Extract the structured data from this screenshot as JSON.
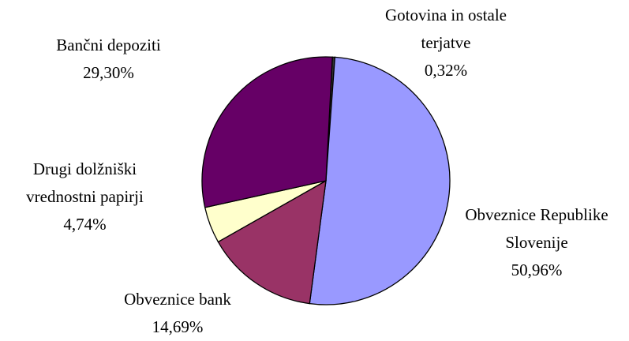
{
  "chart_data": {
    "type": "pie",
    "categories": [
      "Gotovina in ostale terjatve",
      "Obveznice Republike Slovenije",
      "Obveznice bank",
      "Drugi dolžniški vrednostni papirji",
      "Bančni depoziti"
    ],
    "values": [
      0.32,
      50.96,
      14.69,
      4.74,
      29.3
    ],
    "value_labels": [
      "0,32%",
      "50,96%",
      "14,69%",
      "4,74%",
      "29,30%"
    ],
    "colors": [
      "#333333",
      "#9999ff",
      "#993366",
      "#ffffcc",
      "#660066"
    ]
  }
}
